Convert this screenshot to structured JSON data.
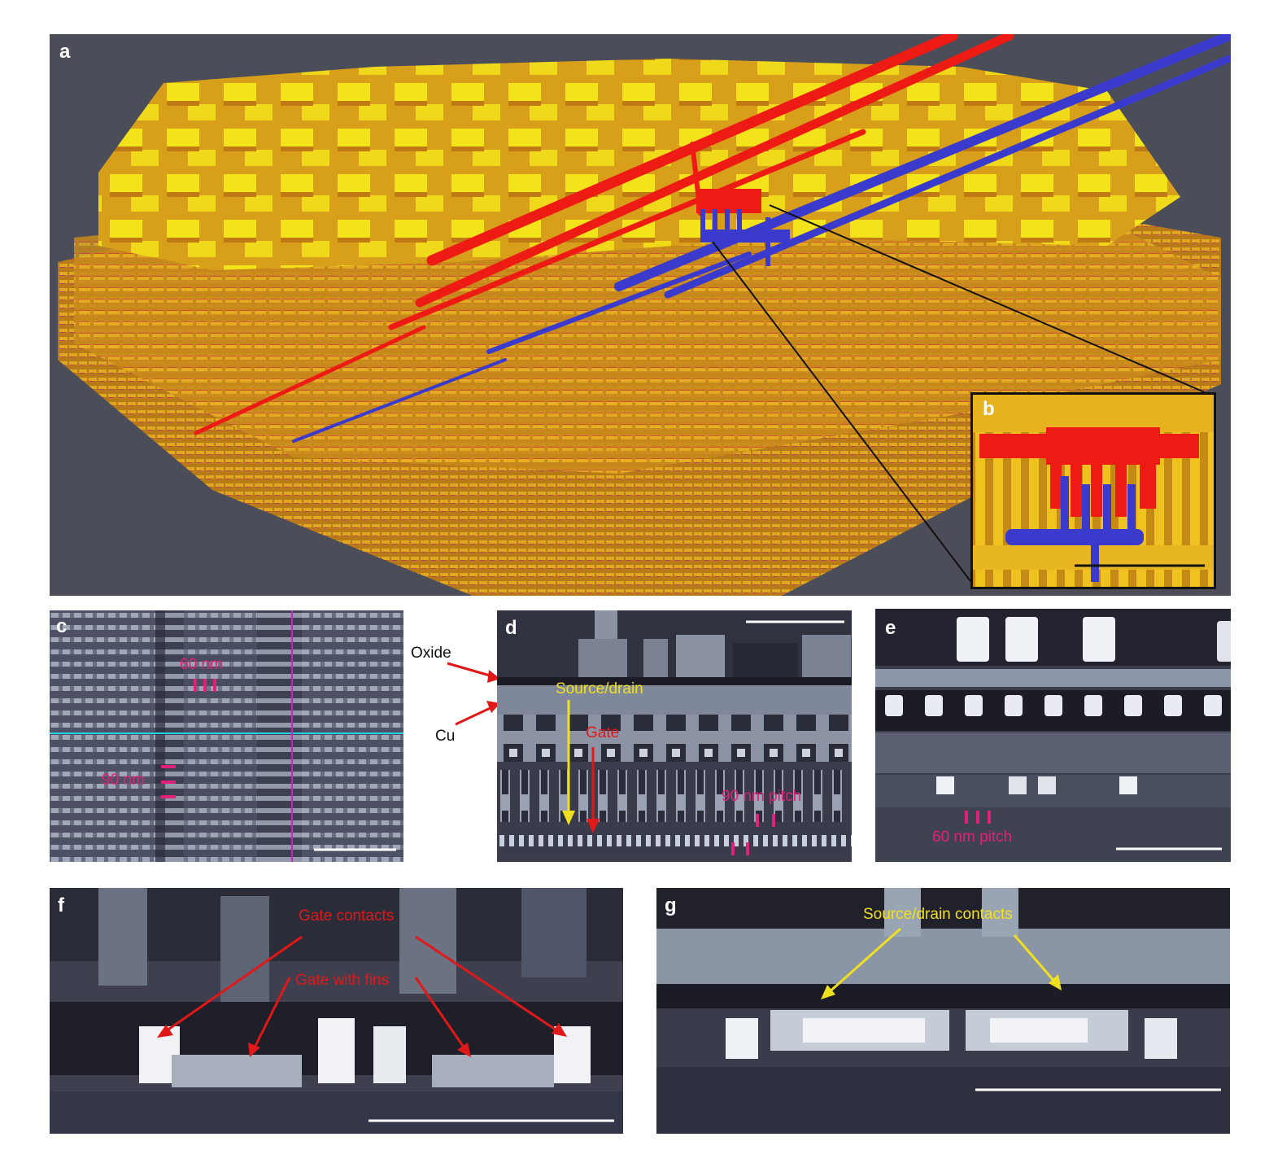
{
  "figure": {
    "panel_a": {
      "label": "a",
      "inset": {
        "label": "b"
      }
    },
    "panel_c": {
      "label": "c",
      "annotations": {
        "pitch_60": "60 nm",
        "pitch_90": "90 nm"
      }
    },
    "panel_d": {
      "label": "d",
      "outside_labels": {
        "oxide": "Oxide",
        "cu": "Cu"
      },
      "annotations": {
        "source_drain": "Source/drain",
        "gate": "Gate",
        "pitch_90": "90 nm pitch"
      }
    },
    "panel_e": {
      "label": "e",
      "annotations": {
        "pitch_60": "60 nm pitch"
      }
    },
    "panel_f": {
      "label": "f",
      "annotations": {
        "gate_contacts": "Gate contacts",
        "gate_with_fins": "Gate with fins"
      }
    },
    "panel_g": {
      "label": "g",
      "annotations": {
        "sd_contacts": "Source/drain contacts"
      }
    }
  },
  "colors": {
    "background_3d": "#4a4d58",
    "metal_yellow": "#f2e21a",
    "metal_orange": "#e0a01c",
    "highlight_red": "#ee1a14",
    "highlight_blue": "#3a3acc",
    "annot_magenta": "#e0207a",
    "annot_yellow": "#f0e020",
    "annot_red": "#e01818",
    "scale_bar": "#ffffff"
  }
}
